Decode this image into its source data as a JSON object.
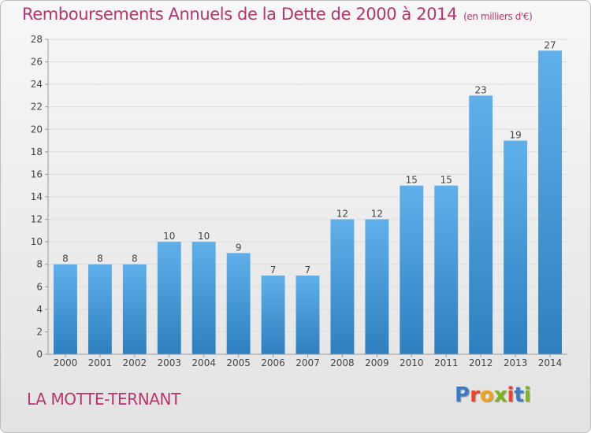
{
  "header": {
    "title": "Remboursements Annuels de la Dette de 2000 à 2014",
    "subtitle": "(en milliers d'€)"
  },
  "footer": {
    "place": "LA MOTTE-TERNANT",
    "logo": [
      "P",
      "r",
      "o",
      "x",
      "i",
      "t",
      "i"
    ]
  },
  "colors": {
    "title": "#b5366e",
    "bar_top": "#5fb0ea",
    "bar_bottom": "#2d7fbf",
    "logo": [
      "#3a7cc4",
      "#e8462d",
      "#f0a21c",
      "#7ab51d",
      "#e8462d",
      "#3a7cc4",
      "#7ab51d"
    ]
  },
  "chart_data": {
    "type": "bar",
    "title": "Remboursements Annuels de la Dette de 2000 à 2014",
    "categories": [
      "2000",
      "2001",
      "2002",
      "2003",
      "2004",
      "2005",
      "2006",
      "2007",
      "2008",
      "2009",
      "2010",
      "2011",
      "2012",
      "2013",
      "2014"
    ],
    "values": [
      8,
      8,
      8,
      10,
      10,
      9,
      7,
      7,
      12,
      12,
      15,
      15,
      23,
      19,
      27
    ],
    "ylim": [
      0,
      28
    ],
    "yticks": [
      0,
      2,
      4,
      6,
      8,
      10,
      12,
      14,
      16,
      18,
      20,
      22,
      24,
      26,
      28
    ],
    "grid": true,
    "data_labels": true
  }
}
